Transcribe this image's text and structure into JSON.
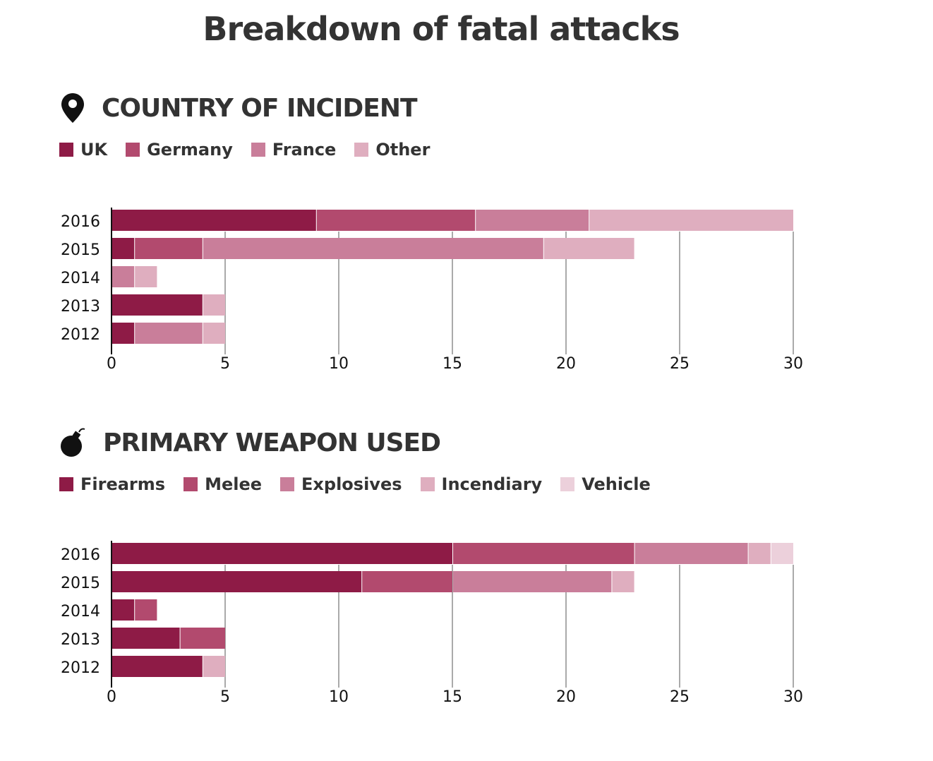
{
  "title": "Breakdown of fatal attacks",
  "chart_data": [
    {
      "type": "bar",
      "orientation": "horizontal",
      "stacked": true,
      "title": "COUNTRY OF INCIDENT",
      "icon": "map-pin-icon",
      "categories": [
        "2016",
        "2015",
        "2014",
        "2013",
        "2012"
      ],
      "series": [
        {
          "name": "UK",
          "color": "#8e1b46",
          "values": [
            9,
            1,
            0,
            4,
            1
          ]
        },
        {
          "name": "Germany",
          "color": "#b24a6e",
          "values": [
            7,
            3,
            0,
            0,
            0
          ]
        },
        {
          "name": "France",
          "color": "#c97e9a",
          "values": [
            5,
            15,
            1,
            0,
            3
          ]
        },
        {
          "name": "Other",
          "color": "#dfaebf",
          "values": [
            9,
            4,
            1,
            1,
            1
          ]
        }
      ],
      "xlim": [
        0,
        30
      ],
      "xticks": [
        0,
        5,
        10,
        15,
        20,
        25,
        30
      ],
      "legend": "top-left",
      "grid": true
    },
    {
      "type": "bar",
      "orientation": "horizontal",
      "stacked": true,
      "title": "PRIMARY WEAPON USED",
      "icon": "bomb-icon",
      "categories": [
        "2016",
        "2015",
        "2014",
        "2013",
        "2012"
      ],
      "series": [
        {
          "name": "Firearms",
          "color": "#8e1b46",
          "values": [
            15,
            11,
            1,
            3,
            4
          ]
        },
        {
          "name": "Melee",
          "color": "#b24a6e",
          "values": [
            8,
            4,
            1,
            2,
            0
          ]
        },
        {
          "name": "Explosives",
          "color": "#c97e9a",
          "values": [
            5,
            7,
            0,
            0,
            0
          ]
        },
        {
          "name": "Incendiary",
          "color": "#dfaebf",
          "values": [
            1,
            1,
            0,
            0,
            1
          ]
        },
        {
          "name": "Vehicle",
          "color": "#ecd0db",
          "values": [
            1,
            0,
            0,
            0,
            0
          ]
        }
      ],
      "xlim": [
        0,
        30
      ],
      "xticks": [
        0,
        5,
        10,
        15,
        20,
        25,
        30
      ],
      "legend": "top-left",
      "grid": true
    }
  ]
}
